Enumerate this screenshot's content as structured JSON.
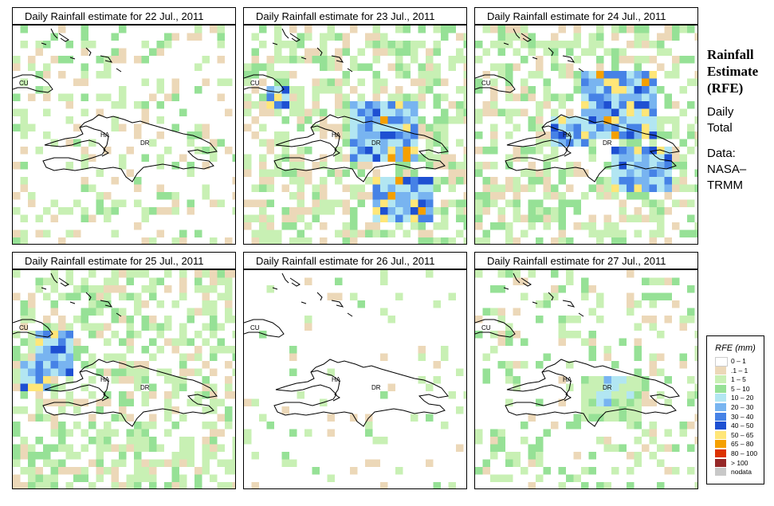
{
  "panels": [
    {
      "title": "Daily Rainfall estimate for  22 Jul., 2011",
      "rain": [
        [
          2,
          0,
          1
        ],
        [
          5,
          0,
          1
        ],
        [
          6,
          2,
          2
        ],
        [
          3,
          3,
          2
        ],
        [
          8,
          4,
          2
        ],
        [
          3,
          5,
          1
        ],
        [
          6,
          5,
          1
        ],
        [
          7,
          6,
          1
        ],
        [
          10,
          6,
          1
        ],
        [
          11,
          7,
          1
        ],
        [
          13,
          7,
          2
        ],
        [
          16,
          8,
          2
        ],
        [
          17,
          10,
          1
        ],
        [
          5,
          11,
          1
        ],
        [
          6,
          12,
          2
        ],
        [
          1,
          13,
          1
        ],
        [
          7,
          15,
          1
        ],
        [
          15,
          15,
          1
        ],
        [
          11,
          16,
          1
        ],
        [
          16,
          17,
          1
        ],
        [
          20,
          18,
          2
        ],
        [
          3,
          19,
          1
        ],
        [
          10,
          19,
          1
        ],
        [
          4,
          23,
          1
        ],
        [
          12,
          23,
          2
        ],
        [
          9,
          24,
          2
        ],
        [
          14,
          25,
          1
        ],
        [
          5,
          26,
          1
        ],
        [
          10,
          26,
          1
        ],
        [
          7,
          27,
          2
        ],
        [
          11,
          28,
          1
        ],
        [
          15,
          28,
          1
        ],
        [
          5,
          31,
          1
        ],
        [
          6,
          32,
          2
        ],
        [
          7,
          33,
          1
        ],
        [
          8,
          34,
          1
        ],
        [
          9,
          34,
          1
        ],
        [
          10,
          36,
          2
        ],
        [
          11,
          37,
          1
        ],
        [
          14,
          37,
          1
        ],
        [
          15,
          38,
          1
        ],
        [
          9,
          39,
          1
        ],
        [
          12,
          40,
          1
        ],
        [
          15,
          41,
          2
        ],
        [
          19,
          41,
          1
        ],
        [
          18,
          42,
          1
        ],
        [
          14,
          44,
          1
        ],
        [
          12,
          45,
          1
        ],
        [
          19,
          45,
          2
        ],
        [
          20,
          45,
          1
        ],
        [
          24,
          45,
          1
        ],
        [
          10,
          46,
          1
        ],
        [
          11,
          46,
          1
        ],
        [
          12,
          47,
          1
        ],
        [
          25,
          47,
          1
        ],
        [
          13,
          48,
          2
        ],
        [
          17,
          48,
          1
        ],
        [
          24,
          48,
          1
        ],
        [
          14,
          49,
          1
        ],
        [
          20,
          50,
          1
        ],
        [
          20,
          51,
          2
        ],
        [
          10,
          52,
          1
        ],
        [
          13,
          53,
          1
        ],
        [
          16,
          55,
          2
        ],
        [
          18,
          56,
          1
        ],
        [
          17,
          57,
          1
        ],
        [
          16,
          58,
          1
        ],
        [
          19,
          58,
          1
        ],
        [
          16,
          60,
          2
        ],
        [
          16,
          61,
          1
        ],
        [
          19,
          61,
          1
        ],
        [
          15,
          62,
          1
        ],
        [
          17,
          63,
          1
        ],
        [
          17,
          64,
          2
        ],
        [
          24,
          65,
          1
        ],
        [
          23,
          66,
          1
        ],
        [
          12,
          69,
          1
        ],
        [
          15,
          72,
          1
        ],
        [
          13,
          73,
          1
        ],
        [
          12,
          74,
          2
        ],
        [
          17,
          74,
          1
        ],
        [
          20,
          75,
          1
        ],
        [
          14,
          77,
          1
        ],
        [
          16,
          77,
          1
        ],
        [
          14,
          78,
          2
        ],
        [
          13,
          79,
          1
        ],
        [
          18,
          80,
          1
        ]
      ],
      "hot": [
        [
          17,
          2,
          2
        ],
        [
          15,
          6,
          1
        ],
        [
          4,
          20,
          2
        ],
        [
          16,
          56,
          1
        ]
      ]
    },
    {
      "title": "Daily Rainfall estimate for  23 Jul., 2011",
      "rain": [],
      "hot": []
    },
    {
      "title": "Daily Rainfall estimate for  24 Jul., 2011",
      "rain": [],
      "hot": []
    },
    {
      "title": "Daily Rainfall estimate for  25 Jul., 2011",
      "rain": [],
      "hot": []
    },
    {
      "title": "Daily Rainfall estimate for  26 Jul., 2011",
      "rain": [],
      "hot": []
    },
    {
      "title": "Daily Rainfall estimate for  27 Jul., 2011",
      "rain": [],
      "hot": []
    }
  ],
  "map_labels": {
    "cu": "CU",
    "ha": "HA",
    "dr": "DR"
  },
  "side": {
    "heading_1": "Rainfall",
    "heading_2": "Estimate",
    "heading_3": "(RFE)",
    "daily": "Daily",
    "total": "Total",
    "data": "Data:",
    "nasa": "NASA–",
    "trmm": "TRMM"
  },
  "legend": {
    "title": "RFE (mm)",
    "items": [
      {
        "label": "0 – 1",
        "color": "#ffffff"
      },
      {
        "label": ".1 – 1",
        "color": "#ecd8b8"
      },
      {
        "label": "1 – 5",
        "color": "#c8f0b4"
      },
      {
        "label": "5 – 10",
        "color": "#96e196"
      },
      {
        "label": "10 – 20",
        "color": "#b2e6f2"
      },
      {
        "label": "20 – 30",
        "color": "#78b4f0"
      },
      {
        "label": "30 – 40",
        "color": "#4682e6"
      },
      {
        "label": "40 – 50",
        "color": "#1e50d2"
      },
      {
        "label": "50 – 65",
        "color": "#ffe678"
      },
      {
        "label": "65 – 80",
        "color": "#f5a000"
      },
      {
        "label": "80 – 100",
        "color": "#dc3200"
      },
      {
        "label": "> 100",
        "color": "#962828"
      },
      {
        "label": "nodata",
        "color": "#c8c8c8"
      }
    ]
  }
}
